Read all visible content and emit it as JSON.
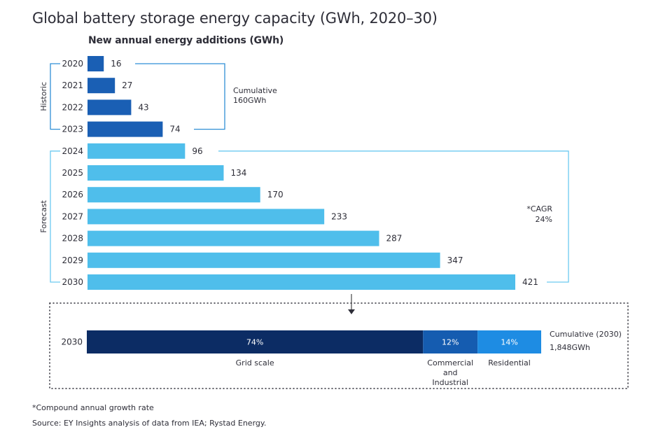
{
  "title": "Global battery storage energy capacity (GWh, 2020–30)",
  "subtitle": "New annual energy additions (GWh)",
  "chart_data": [
    {
      "type": "bar",
      "orientation": "horizontal",
      "title": "New annual energy additions (GWh)",
      "categories": [
        "2020",
        "2021",
        "2022",
        "2023",
        "2024",
        "2025",
        "2026",
        "2027",
        "2028",
        "2029",
        "2030"
      ],
      "values": [
        16,
        27,
        43,
        74,
        96,
        134,
        170,
        233,
        287,
        347,
        421
      ],
      "groups": [
        {
          "name": "Historic",
          "years": [
            "2020",
            "2021",
            "2022",
            "2023"
          ],
          "color": "#1a5fb4"
        },
        {
          "name": "Forecast",
          "years": [
            "2024",
            "2025",
            "2026",
            "2027",
            "2028",
            "2029",
            "2030"
          ],
          "color": "#4fbeeb"
        }
      ],
      "xlim": [
        0,
        421
      ],
      "annotations": [
        {
          "group": "Historic",
          "lines": [
            "Cumulative",
            "160GWh"
          ]
        },
        {
          "group": "Forecast",
          "lines": [
            "*CAGR",
            "24%"
          ]
        }
      ]
    },
    {
      "type": "bar",
      "orientation": "horizontal",
      "stacked": true,
      "categories": [
        "2030"
      ],
      "series": [
        {
          "name": "Grid scale",
          "label_lines": [
            "Grid scale"
          ],
          "values": [
            74
          ],
          "label": "74%",
          "color": "#0c2c64"
        },
        {
          "name": "Commercial and Industrial",
          "label_lines": [
            "Commercial",
            "and",
            "Industrial"
          ],
          "values": [
            12
          ],
          "label": "12%",
          "color": "#155cb0"
        },
        {
          "name": "Residential",
          "label_lines": [
            "Residential"
          ],
          "values": [
            14
          ],
          "label": "14%",
          "color": "#1e8ce3"
        }
      ],
      "annotation": {
        "lines": [
          "Cumulative (2030)",
          "1,848GWh"
        ]
      }
    }
  ],
  "colors": {
    "historic_bar": "#1a5fb4",
    "forecast_bar": "#4fbeeb",
    "historic_bracket": "#2f8fd6",
    "forecast_bracket": "#6ccaf0",
    "text": "#2e2e38"
  },
  "footnotes": {
    "cagr": "*Compound annual growth rate",
    "source": "Source: EY Insights analysis of data from IEA; Rystad Energy."
  }
}
